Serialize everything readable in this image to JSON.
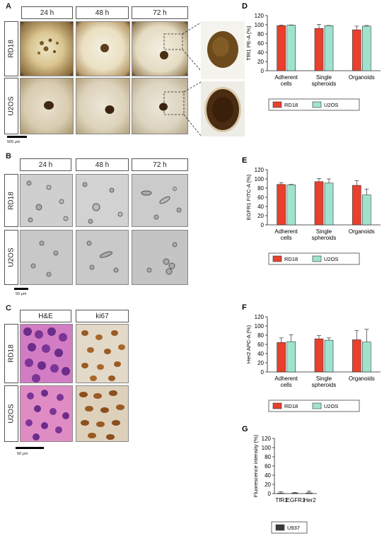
{
  "panels": {
    "A": {
      "label": "A",
      "columns": [
        "24 h",
        "48 h",
        "72 h"
      ],
      "rows": [
        "RD18",
        "U2OS"
      ],
      "scale_bar": "500 μm"
    },
    "B": {
      "label": "B",
      "columns": [
        "24 h",
        "48 h",
        "72 h"
      ],
      "rows": [
        "RD18",
        "U2OS"
      ],
      "scale_bar": "50 μm"
    },
    "C": {
      "label": "C",
      "columns": [
        "H&E",
        "ki67"
      ],
      "rows": [
        "RD18",
        "U2OS"
      ],
      "scale_bar": "60 μm"
    }
  },
  "colors": {
    "RD18": "#e8402c",
    "U2OS": "#9fe3cf",
    "U937": "#3a3a3a"
  },
  "chart_data": [
    {
      "id": "D",
      "label": "D",
      "type": "bar",
      "ylabel": "TfR1 PE-A (%)",
      "categories": [
        "Adherent\ncells",
        "Single\nspheroids",
        "Organoids"
      ],
      "ylim": [
        0,
        120
      ],
      "yticks": [
        0,
        20,
        40,
        60,
        80,
        100,
        120
      ],
      "series": [
        {
          "name": "RD18",
          "values": [
            98,
            92,
            89
          ],
          "errors": [
            1,
            9,
            8
          ]
        },
        {
          "name": "U2OS",
          "values": [
            99,
            98,
            97
          ],
          "errors": [
            0.5,
            0.5,
            1.5
          ]
        }
      ],
      "legend": "bottom"
    },
    {
      "id": "E",
      "label": "E",
      "type": "bar",
      "ylabel": "EGFR1 FITC-A (%)",
      "categories": [
        "Adherent\ncells",
        "Single\nspheroids",
        "Organoids"
      ],
      "ylim": [
        0,
        120
      ],
      "yticks": [
        0,
        20,
        40,
        60,
        80,
        100,
        120
      ],
      "series": [
        {
          "name": "RD18",
          "values": [
            88,
            94,
            86
          ],
          "errors": [
            4,
            7,
            10
          ]
        },
        {
          "name": "U2OS",
          "values": [
            87,
            91,
            65
          ],
          "errors": [
            1,
            9,
            13
          ]
        }
      ],
      "legend": "bottom"
    },
    {
      "id": "F",
      "label": "F",
      "type": "bar",
      "ylabel": "Her2 APC-A (%)",
      "categories": [
        "Adherent\ncells",
        "Single\nspheroids",
        "Organoids"
      ],
      "ylim": [
        0,
        120
      ],
      "yticks": [
        0,
        20,
        40,
        60,
        80,
        100,
        120
      ],
      "series": [
        {
          "name": "RD18",
          "values": [
            64,
            72,
            70
          ],
          "errors": [
            10,
            7,
            20
          ]
        },
        {
          "name": "U2OS",
          "values": [
            66,
            69,
            65
          ],
          "errors": [
            15,
            5,
            28
          ]
        }
      ],
      "legend": "bottom"
    },
    {
      "id": "G",
      "label": "G",
      "type": "bar",
      "ylabel": "Fluorescence intensity (%)",
      "categories": [
        "TfR1",
        "EGFR1",
        "Her2"
      ],
      "ylim": [
        0,
        120
      ],
      "yticks": [
        0,
        20,
        40,
        60,
        80,
        100,
        120
      ],
      "series": [
        {
          "name": "U937",
          "values": [
            1,
            1,
            1.5
          ],
          "errors": [
            3,
            1.5,
            4
          ]
        }
      ],
      "legend": "bottom"
    }
  ]
}
